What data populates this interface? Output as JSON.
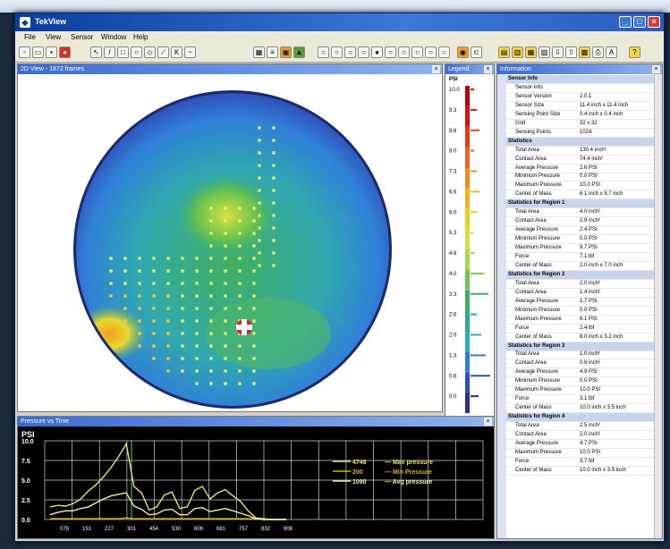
{
  "app": {
    "title": "TekView"
  },
  "menu": [
    "File",
    "View",
    "Sensor",
    "Window",
    "Help"
  ],
  "panes": {
    "map_title": "2D View - 1872 frames",
    "legend_title": "Legend",
    "info_title": "Information",
    "graph_title": "Pressure vs Time"
  },
  "legend": {
    "unit": "PSI",
    "ticks": [
      "10.0",
      "9.3",
      "8.6",
      "8.0",
      "7.3",
      "6.6",
      "6.0",
      "5.3",
      "4.6",
      "4.0",
      "3.3",
      "2.6",
      "2.0",
      "1.3",
      "0.6",
      "0.0"
    ],
    "colors": [
      "#c00000",
      "#d81010",
      "#e83a10",
      "#f06020",
      "#f08a20",
      "#f0b020",
      "#e8d020",
      "#d6e040",
      "#a8d850",
      "#70c850",
      "#40b060",
      "#30a890",
      "#30a8c8",
      "#3080d8",
      "#3050b8",
      "#28308c"
    ]
  },
  "info": [
    {
      "type": "section",
      "label": "Sensor Info"
    },
    {
      "type": "row",
      "key": "Sensor Info",
      "value": ""
    },
    {
      "type": "row",
      "key": "Sensor Version",
      "value": "2.0.1"
    },
    {
      "type": "row",
      "key": "Sensor Size",
      "value": "11.4 inch x 11.4 inch"
    },
    {
      "type": "row",
      "key": "Sensing Point Size",
      "value": "0.4 inch x 0.4 inch"
    },
    {
      "type": "row",
      "key": "Grid",
      "value": "32 x 32"
    },
    {
      "type": "row",
      "key": "Sensing Points",
      "value": "1024"
    },
    {
      "type": "section",
      "label": "Statistics"
    },
    {
      "type": "row",
      "key": "Total Area",
      "value": "130.4 inch²"
    },
    {
      "type": "row",
      "key": "Contact Area",
      "value": "74.4 inch²"
    },
    {
      "type": "row",
      "key": "Average Pressure",
      "value": "2.6 PSI"
    },
    {
      "type": "row",
      "key": "Minimum Pressure",
      "value": "0.0 PSI"
    },
    {
      "type": "row",
      "key": "Maximum Pressure",
      "value": "10.0 PSI"
    },
    {
      "type": "row",
      "key": "Center of Mass",
      "value": "6.1 inch x 5.7 inch"
    },
    {
      "type": "section",
      "label": "Statistics for Region 1"
    },
    {
      "type": "row",
      "key": "Total Area",
      "value": "4.0 inch²"
    },
    {
      "type": "row",
      "key": "Contact Area",
      "value": "2.9 inch²"
    },
    {
      "type": "row",
      "key": "Average Pressure",
      "value": "2.4 PSI"
    },
    {
      "type": "row",
      "key": "Minimum Pressure",
      "value": "0.0 PSI"
    },
    {
      "type": "row",
      "key": "Maximum Pressure",
      "value": "9.7 PSI"
    },
    {
      "type": "row",
      "key": "Force",
      "value": "7.1 lbf"
    },
    {
      "type": "row",
      "key": "Center of Mass",
      "value": "2.0 inch x 7.0 inch"
    },
    {
      "type": "section",
      "label": "Statistics for Region 2"
    },
    {
      "type": "row",
      "key": "Total Area",
      "value": "2.0 inch²"
    },
    {
      "type": "row",
      "key": "Contact Area",
      "value": "1.4 inch²"
    },
    {
      "type": "row",
      "key": "Average Pressure",
      "value": "1.7 PSI"
    },
    {
      "type": "row",
      "key": "Minimum Pressure",
      "value": "0.0 PSI"
    },
    {
      "type": "row",
      "key": "Maximum Pressure",
      "value": "6.1 PSI"
    },
    {
      "type": "row",
      "key": "Force",
      "value": "2.4 lbf"
    },
    {
      "type": "row",
      "key": "Center of Mass",
      "value": "8.0 inch x 3.2 inch"
    },
    {
      "type": "section",
      "label": "Statistics for Region 3"
    },
    {
      "type": "row",
      "key": "Total Area",
      "value": "1.0 inch²"
    },
    {
      "type": "row",
      "key": "Contact Area",
      "value": "0.6 inch²"
    },
    {
      "type": "row",
      "key": "Average Pressure",
      "value": "4.9 PSI"
    },
    {
      "type": "row",
      "key": "Minimum Pressure",
      "value": "0.0 PSI"
    },
    {
      "type": "row",
      "key": "Maximum Pressure",
      "value": "10.0 PSI"
    },
    {
      "type": "row",
      "key": "Force",
      "value": "3.1 lbf"
    },
    {
      "type": "row",
      "key": "Center of Mass",
      "value": "10.0 inch x 3.5 inch"
    },
    {
      "type": "section",
      "label": "Statistics for Region 4"
    },
    {
      "type": "row",
      "key": "Total Area",
      "value": "2.5 inch²"
    },
    {
      "type": "row",
      "key": "Contact Area",
      "value": "2.0 inch²"
    },
    {
      "type": "row",
      "key": "Average Pressure",
      "value": "4.7 PSI"
    },
    {
      "type": "row",
      "key": "Maximum Pressure",
      "value": "10.0 PSI"
    },
    {
      "type": "row",
      "key": "Force",
      "value": "3.7 lbf"
    },
    {
      "type": "row",
      "key": "Center of Mass",
      "value": "10.0 inch x 3.5 inch"
    }
  ],
  "chart_data": {
    "type": "line",
    "ylabel": "PSI",
    "yticks": [
      "10.0",
      "7.5",
      "5.0",
      "2.5",
      "0.0"
    ],
    "ylim": [
      0,
      10
    ],
    "xticks": [
      "078",
      "151",
      "227",
      "301",
      "454",
      "530",
      "606",
      "681",
      "757",
      "832",
      "908"
    ],
    "marker_label": "301",
    "series": [
      {
        "name": "Max pressure",
        "legend_value": "4748",
        "color": "#e8e070",
        "values": [
          1.6,
          1.8,
          1.7,
          2.0,
          2.6,
          3.6,
          4.4,
          5.4,
          6.6,
          8.0,
          9.6,
          4.2,
          3.4,
          1.2,
          1.6,
          3.1,
          3.5,
          1.4,
          1.6,
          3.7,
          4.2,
          2.6,
          3.4,
          3.8,
          3.0,
          2.3,
          1.1,
          0.2,
          0.1,
          0.0,
          0.0,
          0.0
        ]
      },
      {
        "name": "Min Pressure",
        "legend_value": "200",
        "color": "#d8b020",
        "values": [
          0.1,
          0.1,
          0.1,
          0.1,
          0.1,
          0.1,
          0.1,
          0.1,
          0.1,
          0.1,
          0.2,
          0.1,
          0.1,
          0.1,
          0.1,
          0.1,
          0.1,
          0.1,
          0.1,
          0.1,
          0.1,
          0.1,
          0.1,
          0.1,
          0.1,
          0.1,
          0.1,
          0.1,
          0.0,
          0.0,
          0.0,
          0.0
        ]
      },
      {
        "name": "Avg pressure",
        "legend_value": "1090",
        "color": "#f0f0a0",
        "values": [
          0.6,
          0.9,
          1.1,
          1.1,
          1.4,
          1.6,
          2.1,
          2.6,
          3.0,
          3.2,
          3.4,
          1.7,
          1.3,
          0.6,
          0.7,
          1.2,
          1.3,
          0.6,
          0.6,
          1.4,
          1.5,
          1.0,
          1.2,
          1.4,
          1.1,
          0.8,
          0.5,
          0.1,
          0.0,
          0.0,
          0.0,
          0.0
        ]
      }
    ]
  }
}
